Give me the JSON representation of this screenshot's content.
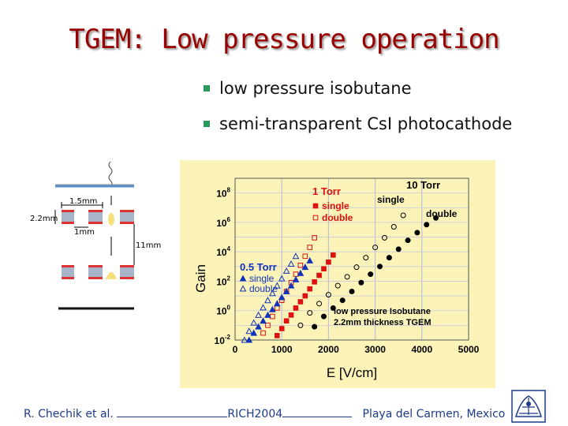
{
  "slide": {
    "title": "TGEM: Low pressure operation",
    "bullets": [
      "low pressure isobutane",
      "semi-transparent CsI photocathode"
    ]
  },
  "diagram": {
    "labels": {
      "hole_pitch": "1.5mm",
      "thickness": "2.2mm",
      "hole_diam": "1mm",
      "gap": "11mm"
    }
  },
  "chart_data": {
    "type": "scatter",
    "title": "",
    "xlabel": "E [V/cm]",
    "ylabel": "Gain",
    "xlim": [
      0,
      5000
    ],
    "ylim_log10": [
      -2,
      9
    ],
    "yscale": "log",
    "background": "#fbf3b8",
    "x_ticks": [
      0,
      1000,
      2000,
      3000,
      4000,
      5000
    ],
    "y_ticks": [
      "10-2",
      "100",
      "102",
      "104",
      "106",
      "108"
    ],
    "annotations": [
      "low pressure Isobutane",
      "2.2mm thickness TGEM"
    ],
    "groups": [
      {
        "label": "10 Torr",
        "color": "#000000"
      },
      {
        "label": "1 Torr",
        "color": "#dd1111"
      },
      {
        "label": "0.5 Torr",
        "color": "#1133bb"
      }
    ],
    "series": [
      {
        "name": "single",
        "group": "10 Torr",
        "marker": "filled-circle",
        "color": "#000000",
        "x": [
          1700,
          1900,
          2100,
          2300,
          2500,
          2700,
          2900,
          3100,
          3300,
          3500,
          3700,
          3900,
          4100,
          4300
        ],
        "y": [
          0.08,
          0.4,
          1.5,
          5,
          20,
          80,
          300,
          1000,
          4000,
          15000,
          60000,
          200000,
          700000,
          2000000
        ]
      },
      {
        "name": "double",
        "group": "10 Torr",
        "marker": "open-circle",
        "color": "#000000",
        "x": [
          1400,
          1600,
          1800,
          2000,
          2200,
          2400,
          2600,
          2800,
          3000,
          3200,
          3400,
          3600
        ],
        "y": [
          0.1,
          0.7,
          3,
          12,
          50,
          200,
          900,
          4000,
          20000,
          90000,
          500000,
          3000000
        ]
      },
      {
        "name": "single",
        "group": "1 Torr",
        "marker": "filled-square",
        "color": "#dd1111",
        "x": [
          900,
          1000,
          1100,
          1200,
          1300,
          1400,
          1500,
          1600,
          1700,
          1800,
          1900,
          2000,
          2100
        ],
        "y": [
          0.02,
          0.06,
          0.2,
          0.5,
          1.5,
          4,
          10,
          30,
          90,
          250,
          700,
          2000,
          6000
        ]
      },
      {
        "name": "double",
        "group": "1 Torr",
        "marker": "open-square",
        "color": "#dd1111",
        "x": [
          600,
          700,
          800,
          900,
          1000,
          1100,
          1200,
          1300,
          1400,
          1500,
          1600,
          1700
        ],
        "y": [
          0.03,
          0.1,
          0.4,
          1.5,
          5,
          20,
          80,
          300,
          1200,
          5000,
          20000,
          90000
        ]
      },
      {
        "name": "single",
        "group": "0.5 Torr",
        "marker": "filled-triangle",
        "color": "#1133bb",
        "x": [
          300,
          400,
          500,
          600,
          700,
          800,
          900,
          1000,
          1100,
          1200,
          1300,
          1400,
          1500,
          1600
        ],
        "y": [
          0.01,
          0.03,
          0.08,
          0.2,
          0.5,
          1.2,
          3,
          8,
          20,
          50,
          130,
          350,
          900,
          2500
        ]
      },
      {
        "name": "double",
        "group": "0.5 Torr",
        "marker": "open-triangle",
        "color": "#1133bb",
        "x": [
          200,
          300,
          400,
          500,
          600,
          700,
          800,
          900,
          1000,
          1100,
          1200,
          1300
        ],
        "y": [
          0.01,
          0.04,
          0.15,
          0.5,
          1.6,
          5,
          15,
          50,
          150,
          500,
          1500,
          5000
        ]
      }
    ]
  },
  "footer": {
    "author": "R. Chechik et al.",
    "conference": "RICH2004",
    "location": "Playa del Carmen, Mexico"
  }
}
